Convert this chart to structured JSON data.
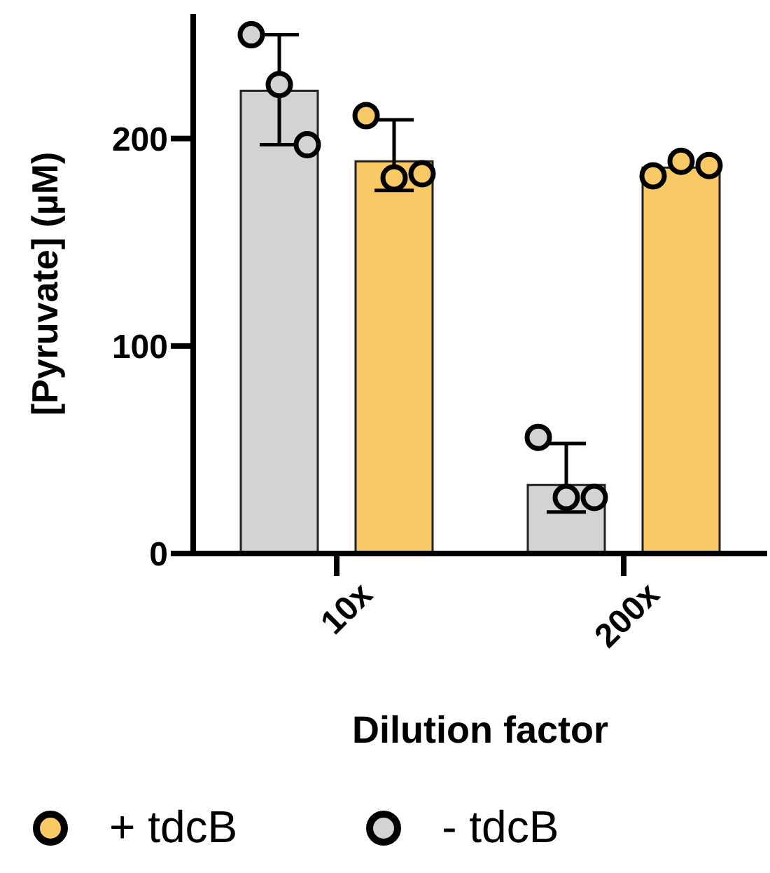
{
  "chart_data": {
    "type": "bar",
    "xlabel": "Dilution factor",
    "ylabel": "[Pyruvate] (µM)",
    "categories": [
      "10x",
      "200x"
    ],
    "ylim": [
      0,
      260
    ],
    "yticks": [
      0,
      100,
      200
    ],
    "legend": "bottom",
    "grid": false,
    "series": [
      {
        "name": "- tdcB",
        "color": "#d3d3d3",
        "values": [
          223,
          33
        ],
        "errors": [
          [
            197,
            250
          ],
          [
            20,
            53
          ]
        ]
      },
      {
        "name": "+ tdcB",
        "color": "#f9c965",
        "values": [
          189,
          186
        ],
        "errors": [
          [
            175,
            209
          ],
          null
        ]
      },
      {
        "type": "scatter",
        "color": "#d3d3d3",
        "x": [
          "10x",
          "10x",
          "10x",
          "200x",
          "200x",
          "200x"
        ],
        "values": [
          250,
          226,
          197,
          56,
          27,
          27
        ]
      },
      {
        "type": "scatter",
        "color": "#f9c965",
        "x": [
          "10x",
          "10x",
          "10x",
          "200x",
          "200x",
          "200x"
        ],
        "values": [
          211,
          181,
          183,
          182,
          189,
          187
        ]
      }
    ]
  }
}
